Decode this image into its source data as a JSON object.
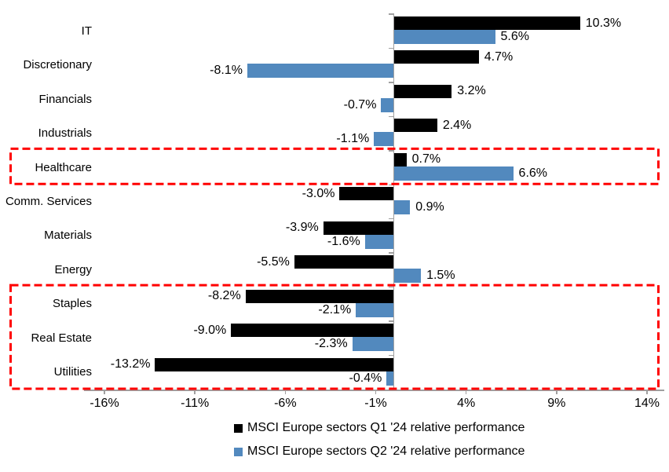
{
  "chart_data": {
    "type": "bar",
    "orientation": "horizontal",
    "title": "",
    "categories": [
      "IT",
      "Discretionary",
      "Financials",
      "Industrials",
      "Healthcare",
      "Comm. Services",
      "Materials",
      "Energy",
      "Staples",
      "Real Estate",
      "Utilities"
    ],
    "series": [
      {
        "name": "MSCI Europe sectors Q1 '24 relative performance",
        "color": "#000000",
        "values": [
          10.3,
          4.7,
          3.2,
          2.4,
          0.7,
          -3.0,
          -3.9,
          -5.5,
          -8.2,
          -9.0,
          -13.2
        ],
        "labels": [
          "10.3%",
          "4.7%",
          "3.2%",
          "2.4%",
          "0.7%",
          "-3.0%",
          "-3.9%",
          "-5.5%",
          "-8.2%",
          "-9.0%",
          "-13.2%"
        ]
      },
      {
        "name": "MSCI Europe sectors Q2 '24 relative performance",
        "color": "#5289BE",
        "values": [
          5.6,
          -8.1,
          -0.7,
          -1.1,
          6.6,
          0.9,
          -1.6,
          1.5,
          -2.1,
          -2.3,
          -0.4
        ],
        "labels": [
          "5.6%",
          "-8.1%",
          "-0.7%",
          "-1.1%",
          "6.6%",
          "0.9%",
          "-1.6%",
          "1.5%",
          "-2.1%",
          "-2.3%",
          "-0.4%"
        ]
      }
    ],
    "xlim": [
      -16,
      14
    ],
    "x_ticks": [
      "-16%",
      "-11%",
      "-6%",
      "-1%",
      "4%",
      "9%",
      "14%"
    ],
    "x_tick_values": [
      -16,
      -11,
      -6,
      -1,
      4,
      9,
      14
    ],
    "grid": false,
    "legend_position": "bottom",
    "highlights": [
      {
        "categories": [
          "Healthcare"
        ],
        "color": "#FF0000",
        "style": "dashed-box"
      },
      {
        "categories": [
          "Staples",
          "Real Estate",
          "Utilities"
        ],
        "color": "#FF0000",
        "style": "dashed-box"
      }
    ]
  },
  "colors": {
    "axis": "#A0A0A0",
    "background": "#FFFFFF",
    "q1_bar": "#000000",
    "q2_bar": "#5289BE",
    "highlight": "#FF0000"
  }
}
